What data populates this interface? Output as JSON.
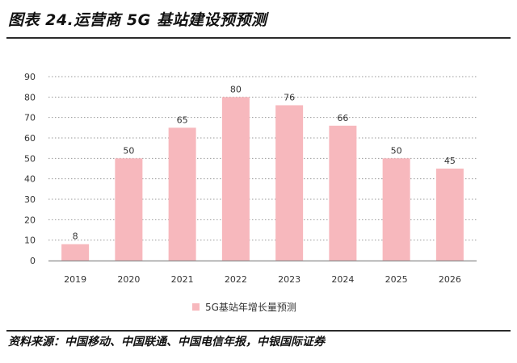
{
  "figure_title": "图表 24.运营商 5G 基站建设预预测",
  "source_text": "资料来源：中国移动、中国联通、中国电信年报，中银国际证券",
  "chart_data": {
    "type": "bar",
    "categories": [
      "2019",
      "2020",
      "2021",
      "2022",
      "2023",
      "2024",
      "2025",
      "2026"
    ],
    "series": [
      {
        "name": "5G基站年增长量预测",
        "values": [
          8,
          50,
          65,
          80,
          76,
          66,
          50,
          45
        ]
      }
    ],
    "yticks": [
      "0",
      "10",
      "20",
      "30",
      "40",
      "50",
      "60",
      "70",
      "80",
      "90"
    ],
    "ylim": [
      0,
      90
    ],
    "grid": true,
    "legend_position": "bottom",
    "colors": {
      "bar": "#f7b8bd",
      "grid": "#9a9a9a",
      "axis": "#8a8a8a"
    }
  }
}
